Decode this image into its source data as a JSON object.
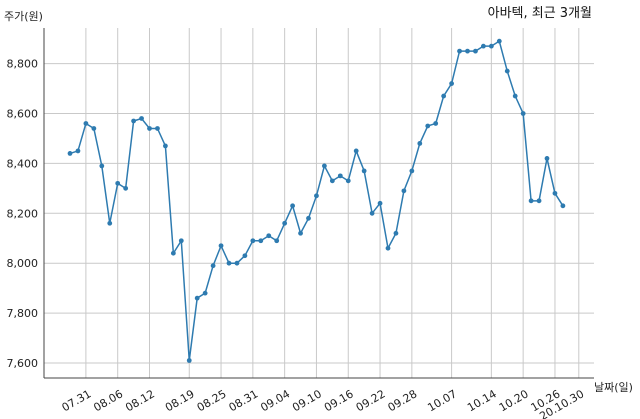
{
  "chart_data": {
    "type": "line",
    "title": "아바텍, 최근 3개월",
    "ylabel": "주가(원)",
    "xlabel": "날짜(일)",
    "ylim": [
      7600,
      8950
    ],
    "y_ticks": [
      7600,
      7800,
      8000,
      8200,
      8400,
      8600,
      8800
    ],
    "y_tick_labels": [
      "7,600",
      "7,800",
      "8,000",
      "8,200",
      "8,400",
      "8,600",
      "8,800"
    ],
    "x_tick_labels": [
      "07.31",
      "08.06",
      "08.12",
      "08.19",
      "08.25",
      "08.31",
      "09.04",
      "09.10",
      "09.16",
      "09.22",
      "09.28",
      "10.07",
      "10.14",
      "10.20",
      "10.26",
      "20.10.30"
    ],
    "x_tick_index": [
      2,
      6,
      10,
      15,
      19,
      23,
      27,
      31,
      35,
      39,
      43,
      48,
      53,
      57,
      61,
      64
    ],
    "grid": true,
    "line_color": "#2e7bb0",
    "series": [
      {
        "values": [
          8440,
          8450,
          8560,
          8540,
          8390,
          8160,
          8320,
          8300,
          8570,
          8580,
          8540,
          8540,
          8470,
          8040,
          8090,
          7610,
          7860,
          7880,
          7990,
          8070,
          8000,
          8000,
          8030,
          8090,
          8090,
          8110,
          8090,
          8160,
          8230,
          8120,
          8180,
          8270,
          8390,
          8330,
          8350,
          8330,
          8450,
          8370,
          8200,
          8240,
          8060,
          8120,
          8290,
          8370,
          8480,
          8550,
          8560,
          8670,
          8720,
          8850,
          8850,
          8850,
          8870,
          8870,
          8890,
          8770,
          8670,
          8600,
          8250,
          8250,
          8420,
          8280,
          8230
        ]
      }
    ]
  }
}
